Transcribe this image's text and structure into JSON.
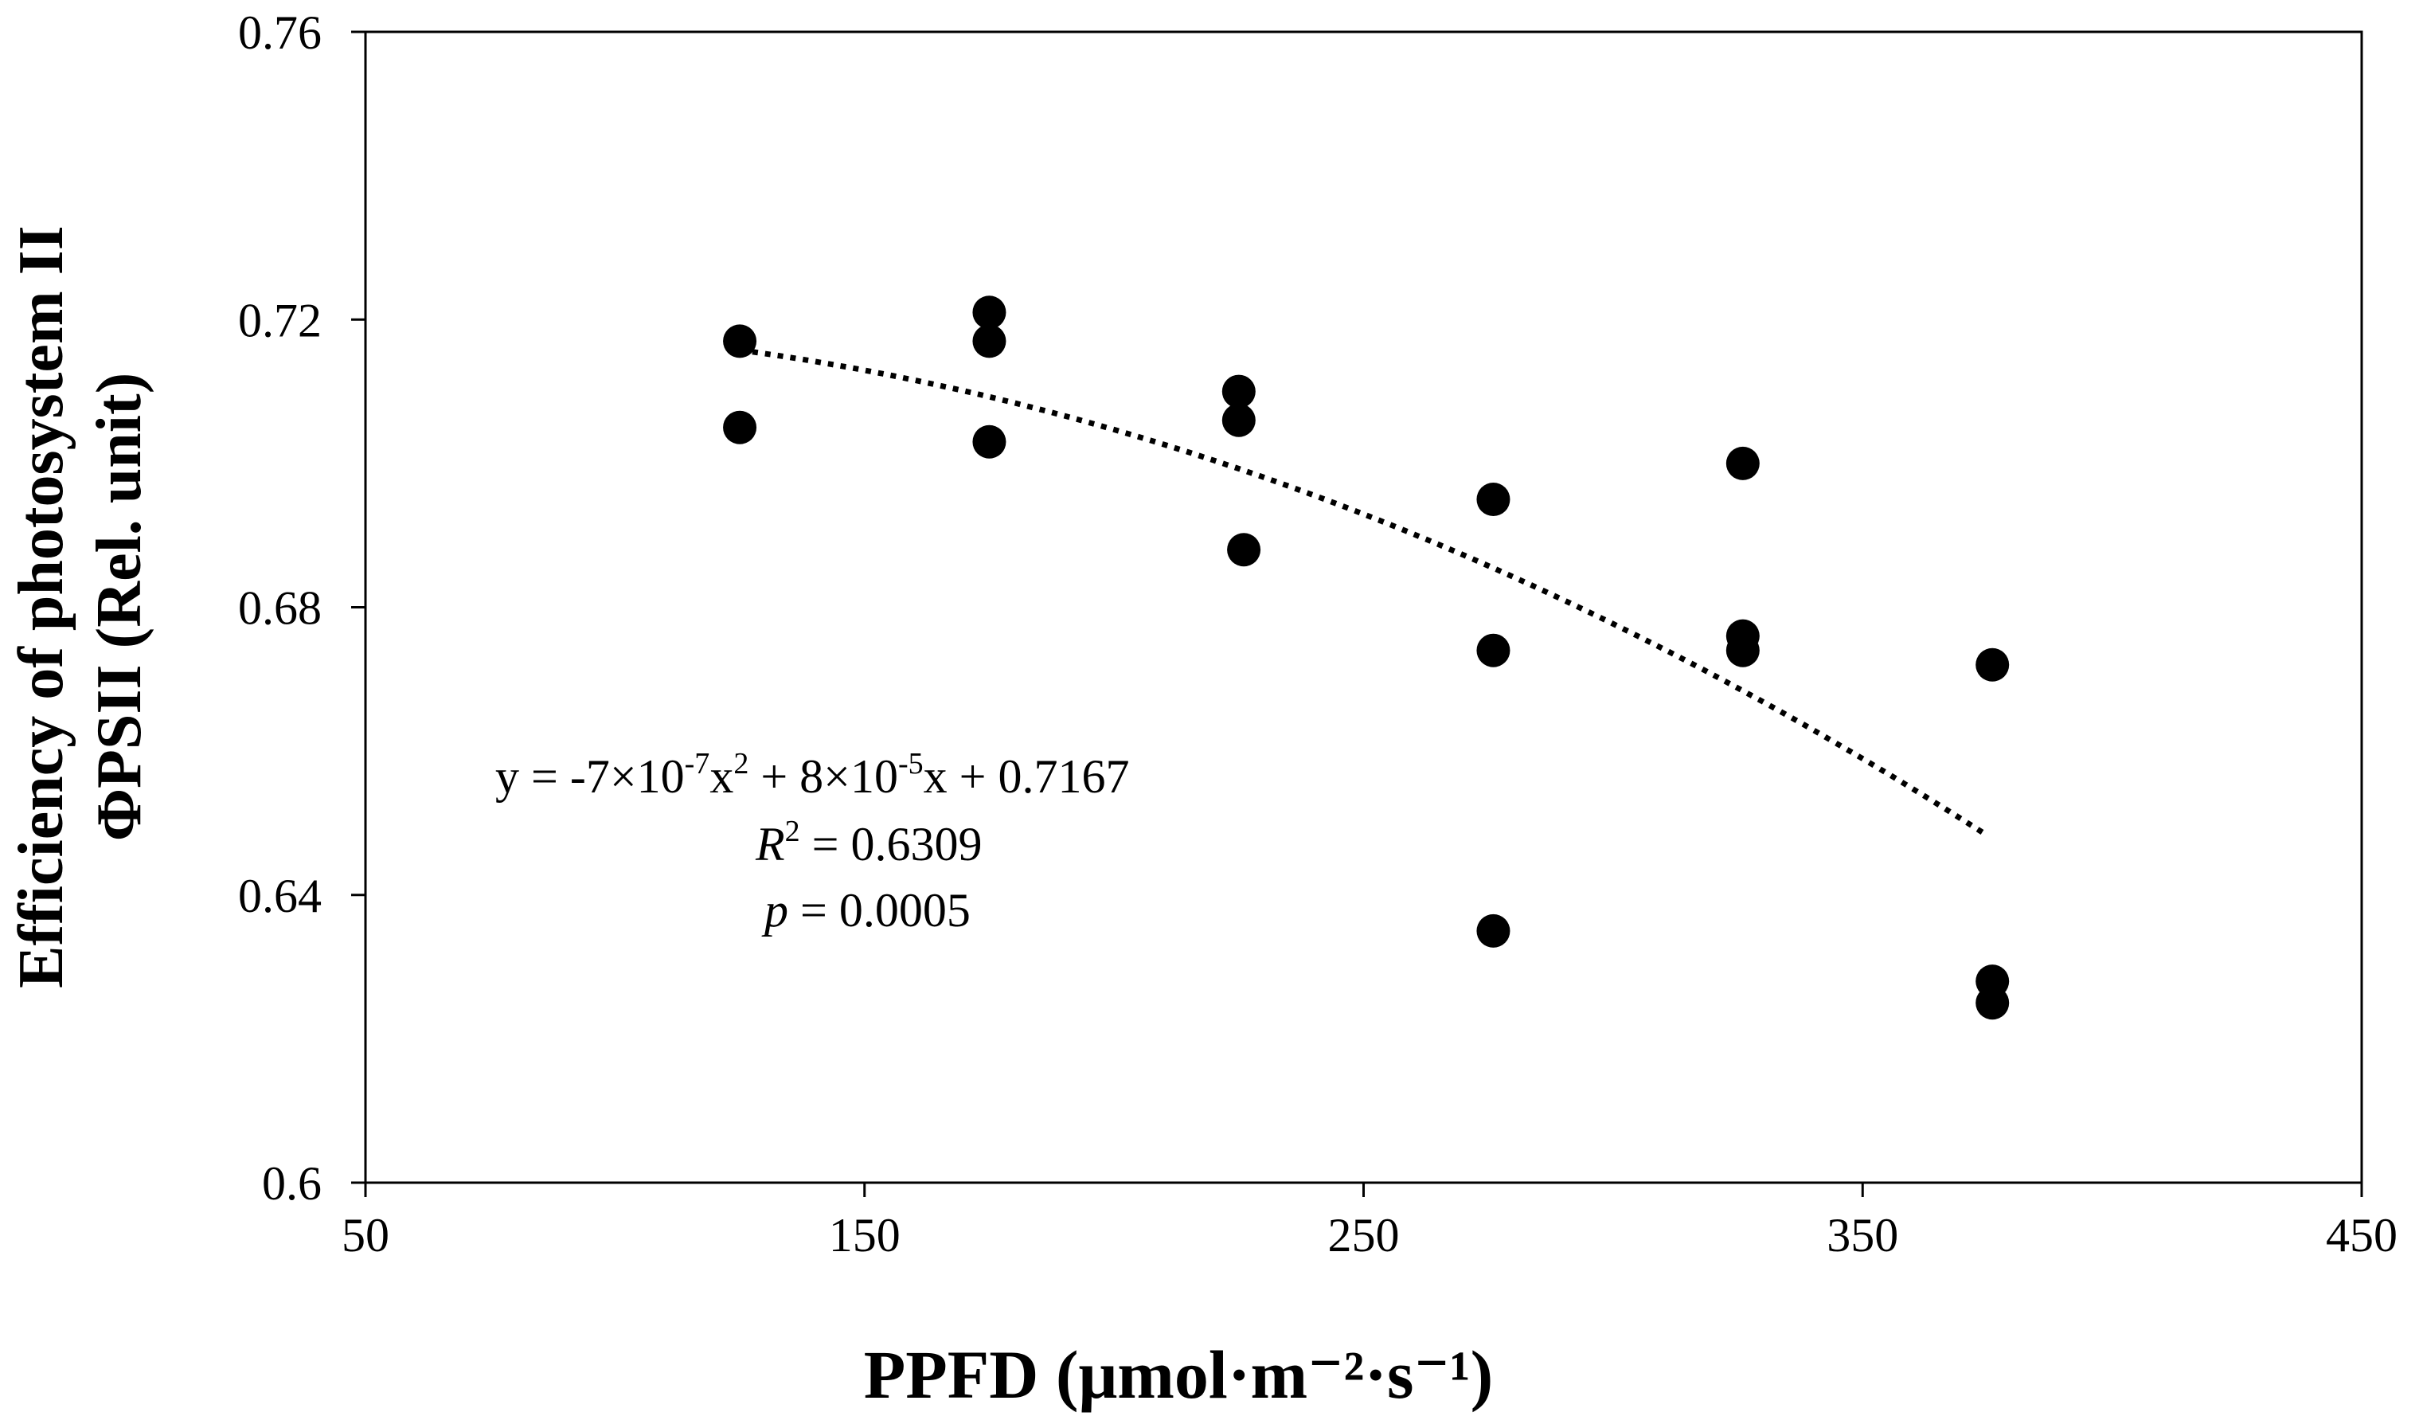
{
  "chart_data": {
    "type": "scatter",
    "title": "",
    "xlabel": "PPFD (μmol·m⁻²·s⁻¹)",
    "ylabel_line1": "Efficiency of photosystem II",
    "ylabel_line2": "ΦPSII (Rel. unit)",
    "xlim": [
      50,
      450
    ],
    "ylim": [
      0.6,
      0.76
    ],
    "x_ticks": [
      50,
      150,
      250,
      350,
      450
    ],
    "x_tick_labels": [
      "50",
      "150",
      "250",
      "350",
      "450"
    ],
    "y_ticks": [
      0.6,
      0.64,
      0.68,
      0.72,
      0.76
    ],
    "y_tick_labels": [
      "0.6",
      "0.64",
      "0.68",
      "0.72",
      "0.76"
    ],
    "grid": false,
    "legend": "none",
    "series": [
      {
        "name": "ΦPSII",
        "points": [
          {
            "x": 125,
            "y": 0.717
          },
          {
            "x": 125,
            "y": 0.705
          },
          {
            "x": 175,
            "y": 0.721
          },
          {
            "x": 175,
            "y": 0.717
          },
          {
            "x": 175,
            "y": 0.703
          },
          {
            "x": 225,
            "y": 0.71
          },
          {
            "x": 225,
            "y": 0.706
          },
          {
            "x": 226,
            "y": 0.688
          },
          {
            "x": 276,
            "y": 0.695
          },
          {
            "x": 276,
            "y": 0.674
          },
          {
            "x": 276,
            "y": 0.635
          },
          {
            "x": 326,
            "y": 0.7
          },
          {
            "x": 326,
            "y": 0.676
          },
          {
            "x": 326,
            "y": 0.674
          },
          {
            "x": 376,
            "y": 0.672
          },
          {
            "x": 376,
            "y": 0.628
          },
          {
            "x": 376,
            "y": 0.625
          }
        ]
      }
    ],
    "trendline": {
      "type": "polynomial-2",
      "style": "dotted",
      "x_range": [
        125,
        375
      ],
      "coefficients": {
        "a": -7e-07,
        "b": 8e-05,
        "c": 0.7167
      }
    },
    "annotations": {
      "equation": {
        "y_prefix": "y = -7×10",
        "exp1": "-7",
        "mid1": "x",
        "exp2": "2",
        "mid2": " + 8×10",
        "exp3": "-5",
        "suffix": "x + 0.7167"
      },
      "r2": {
        "label": "R",
        "sup": "2",
        "value": " = 0.6309"
      },
      "p": {
        "label": "p",
        "value": " = 0.0005"
      }
    }
  }
}
